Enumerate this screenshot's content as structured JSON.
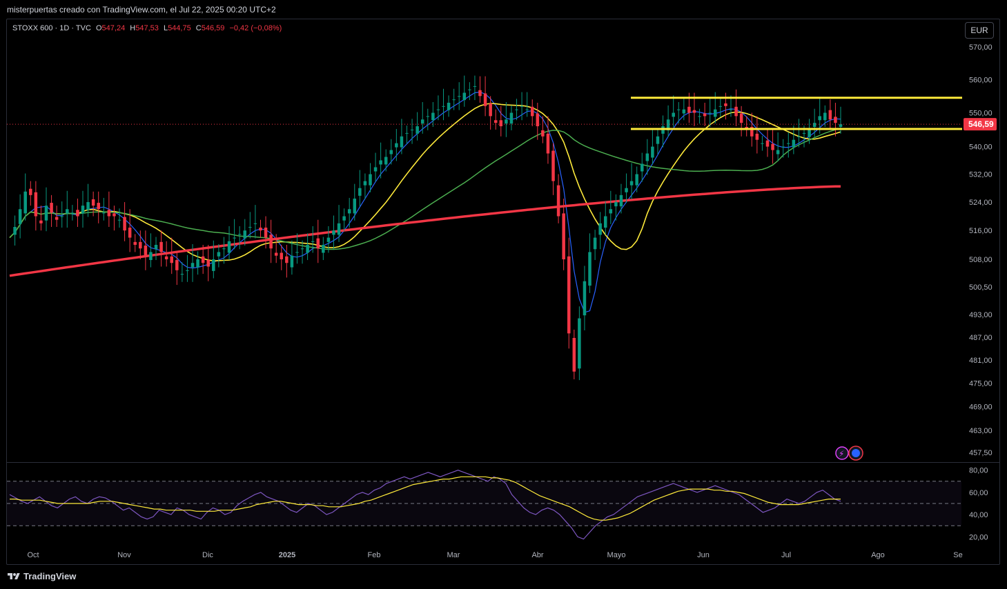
{
  "header": {
    "attribution": "misterpuertas creado con TradingView.com, el Jul 22, 2025 00:20 UTC+2"
  },
  "legend": {
    "symbol": "STOXX 600 · 1D · TVC",
    "open_label": "O",
    "open": "547,24",
    "high_label": "H",
    "high": "547,53",
    "low_label": "L",
    "low": "544,75",
    "close_label": "C",
    "close": "546,59",
    "change": "−0,42 (−0,08%)"
  },
  "currency": "EUR",
  "footer": {
    "brand": "TradingView"
  },
  "chart_data": [
    {
      "type": "candlestick",
      "title": "STOXX 600 · 1D · TVC",
      "y_ticks": [
        "570,00",
        "560,00",
        "550,00",
        "540,00",
        "532,00",
        "524,00",
        "516,00",
        "508,00",
        "500,50",
        "493,00",
        "487,00",
        "481,00",
        "475,00",
        "469,00",
        "463,00",
        "457,50"
      ],
      "y_scale": "log",
      "ylim": [
        455,
        572
      ],
      "x_ticks": [
        "Oct",
        "Nov",
        "Dic",
        "2025",
        "Feb",
        "Mar",
        "Abr",
        "Mayo",
        "Jun",
        "Jul",
        "Ago",
        "Se"
      ],
      "last_price_label": "546,59",
      "last_price": 546.59,
      "close_series": {
        "x_start": "2024-09-26",
        "values": [
          514,
          517,
          522,
          527,
          526,
          520,
          518,
          523,
          521,
          519,
          520,
          522,
          521,
          520,
          523,
          524,
          523,
          522,
          521,
          520,
          520,
          519,
          516,
          514,
          512,
          511,
          509,
          510,
          512,
          510,
          508,
          507,
          505,
          504,
          505,
          507,
          508,
          507,
          506,
          508,
          510,
          511,
          513,
          514,
          515,
          516,
          517,
          518,
          516,
          514,
          511,
          509,
          508,
          507,
          509,
          510,
          511,
          512,
          513,
          511,
          512,
          514,
          516,
          518,
          520,
          522,
          525,
          528,
          530,
          532,
          534,
          536,
          537,
          539,
          541,
          543,
          544,
          545,
          546,
          548,
          549,
          550,
          551,
          552,
          553,
          554,
          555,
          556,
          557,
          558,
          555,
          552,
          549,
          547,
          546,
          548,
          550,
          551,
          552,
          551,
          549,
          546,
          543,
          538,
          530,
          520,
          508,
          488,
          478,
          492,
          502,
          510,
          514,
          518,
          520,
          522,
          524,
          526,
          528,
          530,
          532,
          535,
          538,
          540,
          543,
          546,
          548,
          550,
          551,
          551,
          550,
          550,
          549,
          549,
          550,
          551,
          552,
          552,
          551,
          549,
          547,
          545,
          543,
          542,
          541,
          540,
          539,
          539,
          540,
          541,
          542,
          543,
          544,
          545,
          547,
          549,
          550,
          548,
          547,
          546.6
        ]
      },
      "bands": [
        {
          "label": "resistance",
          "value": 554.5,
          "color": "#ffeb3b"
        },
        {
          "label": "support",
          "value": 545.2,
          "color": "#ffeb3b"
        }
      ],
      "moving_averages": [
        {
          "color": "#2962ff",
          "name": ""
        },
        {
          "color": "#ffeb3b",
          "name": ""
        },
        {
          "color": "#4caf50",
          "name": ""
        },
        {
          "color": "#f23645",
          "name": ""
        }
      ]
    },
    {
      "type": "line",
      "y_ticks": [
        "80,00",
        "60,00",
        "40,00",
        "20,00"
      ],
      "ylim": [
        14,
        86
      ],
      "dashed_levels": [
        70,
        50,
        30
      ],
      "series": [
        {
          "color": "#7e57c2",
          "values": [
            58,
            55,
            52,
            50,
            53,
            56,
            52,
            48,
            46,
            50,
            54,
            56,
            52,
            50,
            54,
            56,
            55,
            52,
            48,
            44,
            46,
            42,
            38,
            36,
            38,
            44,
            42,
            40,
            46,
            44,
            40,
            38,
            36,
            42,
            46,
            44,
            40,
            42,
            48,
            52,
            55,
            58,
            60,
            56,
            54,
            52,
            48,
            44,
            42,
            46,
            50,
            48,
            44,
            40,
            42,
            46,
            50,
            54,
            58,
            60,
            58,
            62,
            64,
            68,
            70,
            72,
            74,
            72,
            74,
            76,
            78,
            76,
            74,
            76,
            78,
            80,
            78,
            76,
            74,
            72,
            70,
            74,
            72,
            68,
            58,
            52,
            46,
            42,
            40,
            44,
            46,
            44,
            40,
            34,
            28,
            20,
            18,
            24,
            30,
            34,
            38,
            40,
            44,
            48,
            52,
            56,
            58,
            60,
            62,
            64,
            66,
            68,
            66,
            64,
            62,
            60,
            62,
            64,
            66,
            64,
            62,
            60,
            58,
            54,
            50,
            46,
            42,
            44,
            46,
            50,
            54,
            52,
            50,
            52,
            56,
            60,
            62,
            58,
            54,
            52
          ]
        },
        {
          "color": "#ffeb3b",
          "values": [
            54,
            54,
            53,
            53,
            53,
            53,
            52,
            51,
            50,
            50,
            50,
            50,
            50,
            50,
            51,
            52,
            52,
            52,
            51,
            50,
            49,
            48,
            47,
            46,
            45,
            45,
            44,
            44,
            44,
            44,
            44,
            43,
            43,
            43,
            43,
            44,
            44,
            44,
            45,
            46,
            47,
            49,
            50,
            51,
            52,
            52,
            51,
            50,
            49,
            49,
            49,
            48,
            48,
            47,
            47,
            47,
            48,
            49,
            50,
            52,
            53,
            55,
            57,
            59,
            61,
            63,
            65,
            67,
            68,
            69,
            70,
            71,
            72,
            72,
            73,
            74,
            74,
            74,
            74,
            74,
            73,
            73,
            72,
            71,
            69,
            66,
            63,
            60,
            57,
            55,
            53,
            51,
            49,
            47,
            44,
            41,
            38,
            36,
            35,
            35,
            36,
            37,
            39,
            41,
            44,
            47,
            50,
            53,
            55,
            57,
            59,
            61,
            62,
            63,
            63,
            63,
            63,
            62,
            62,
            61,
            61,
            60,
            59,
            57,
            55,
            53,
            51,
            50,
            49,
            49,
            49,
            49,
            50,
            51,
            52,
            53,
            54,
            54,
            54
          ]
        }
      ]
    }
  ]
}
